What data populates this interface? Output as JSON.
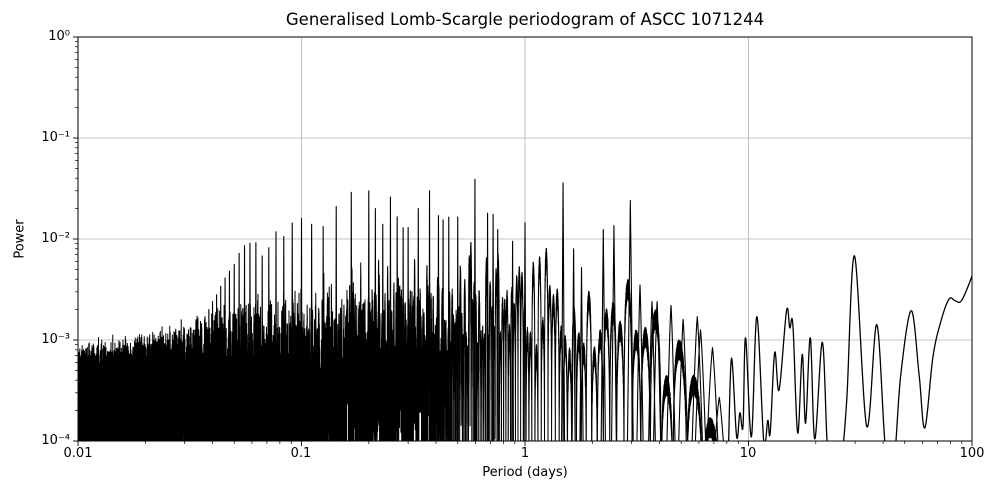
{
  "title": "Generalised Lomb-Scargle periodogram of ASCC 1071244",
  "xlabel": "Period (days)",
  "ylabel": "Power",
  "chart_data": {
    "type": "line",
    "x_scale": "log",
    "y_scale": "log",
    "xlim": [
      0.01,
      100
    ],
    "ylim": [
      0.0001,
      1
    ],
    "grid": true,
    "legend": false,
    "line_color": "#000000",
    "grid_color": "#b0b0b0",
    "spine_color": "#000000",
    "xtick_values": [
      0.01,
      0.1,
      1,
      10,
      100
    ],
    "xtick_labels": [
      "0.01",
      "0.1",
      "1",
      "10",
      "100"
    ],
    "ytick_values": [
      0.0001,
      0.001,
      0.01,
      0.1,
      1
    ],
    "ytick_labels": [
      "10⁻⁴",
      "10⁻³",
      "10⁻²",
      "10⁻¹",
      "10⁰"
    ],
    "major_peaks": [
      [
        0.0333,
        0.0011
      ],
      [
        0.0345,
        0.00125
      ],
      [
        0.0357,
        0.00145
      ],
      [
        0.037,
        0.0017
      ],
      [
        0.0385,
        0.002
      ],
      [
        0.04,
        0.0024
      ],
      [
        0.0417,
        0.0028
      ],
      [
        0.0435,
        0.0034
      ],
      [
        0.0455,
        0.0041
      ],
      [
        0.0476,
        0.0048
      ],
      [
        0.05,
        0.0056
      ],
      [
        0.0526,
        0.0072
      ],
      [
        0.0556,
        0.0086
      ],
      [
        0.0588,
        0.0091
      ],
      [
        0.0625,
        0.0092
      ],
      [
        0.0667,
        0.0068
      ],
      [
        0.0714,
        0.0082
      ],
      [
        0.0769,
        0.0118
      ],
      [
        0.0833,
        0.0106
      ],
      [
        0.0909,
        0.0144
      ],
      [
        0.1,
        0.016
      ],
      [
        0.111,
        0.014
      ],
      [
        0.125,
        0.0133
      ],
      [
        0.143,
        0.021
      ],
      [
        0.167,
        0.029
      ],
      [
        0.2,
        0.03
      ],
      [
        0.214,
        0.02
      ],
      [
        0.231,
        0.014
      ],
      [
        0.25,
        0.026
      ],
      [
        0.268,
        0.0166
      ],
      [
        0.285,
        0.0129
      ],
      [
        0.3,
        0.013
      ],
      [
        0.333,
        0.02
      ],
      [
        0.374,
        0.03
      ],
      [
        0.41,
        0.017
      ],
      [
        0.43,
        0.0155
      ],
      [
        0.456,
        0.0165
      ],
      [
        0.5,
        0.0165
      ],
      [
        0.597,
        0.039
      ],
      [
        0.68,
        0.018
      ],
      [
        0.72,
        0.0175
      ],
      [
        0.755,
        0.0124
      ],
      [
        0.88,
        0.0095
      ],
      [
        1.0,
        0.0145
      ],
      [
        1.48,
        0.036
      ],
      [
        1.65,
        0.008
      ],
      [
        1.79,
        0.0052
      ],
      [
        2.24,
        0.0124
      ],
      [
        2.5,
        0.0136
      ],
      [
        2.96,
        0.024
      ],
      [
        3.27,
        0.0035
      ],
      [
        3.7,
        0.0024
      ],
      [
        3.9,
        0.0024
      ],
      [
        4.5,
        0.0022
      ],
      [
        5.1,
        0.0016
      ],
      [
        5.9,
        0.0017
      ],
      [
        6.1,
        0.00126
      ],
      [
        6.9,
        0.00084
      ],
      [
        7.4,
        0.00027
      ]
    ],
    "noise": {
      "period_range": [
        0.01,
        8.2
      ],
      "t_span_days": 35,
      "floor": 0.0001,
      "canopy_envelope": [
        [
          0.01,
          0.00085
        ],
        [
          0.015,
          0.00095
        ],
        [
          0.02,
          0.00105
        ],
        [
          0.03,
          0.00135
        ],
        [
          0.045,
          0.0019
        ],
        [
          0.06,
          0.0024
        ],
        [
          0.08,
          0.003
        ],
        [
          0.1,
          0.0035
        ],
        [
          0.15,
          0.0045
        ],
        [
          0.22,
          0.0055
        ],
        [
          0.35,
          0.0065
        ],
        [
          0.6,
          0.0075
        ],
        [
          1.0,
          0.008
        ],
        [
          1.6,
          0.0065
        ],
        [
          2.5,
          0.005
        ],
        [
          3.5,
          0.003
        ],
        [
          5.0,
          0.0016
        ],
        [
          6.5,
          0.001
        ],
        [
          8.2,
          0.00045
        ]
      ],
      "depth_profile": [
        [
          0.01,
          0.55
        ],
        [
          0.03,
          0.6
        ],
        [
          0.05,
          0.85
        ],
        [
          0.1,
          1.0
        ],
        [
          0.3,
          1.05
        ],
        [
          1,
          1.05
        ],
        [
          3,
          1.0
        ],
        [
          8.2,
          0.95
        ]
      ]
    },
    "smooth_tail": [
      [
        8.15,
        0.0001
      ],
      [
        8.4,
        0.00066
      ],
      [
        8.85,
        0.00011
      ],
      [
        9.15,
        0.00019
      ],
      [
        9.45,
        0.00014
      ],
      [
        9.7,
        0.00105
      ],
      [
        10.3,
        0.00011
      ],
      [
        10.9,
        0.0017
      ],
      [
        11.7,
        0.0001
      ],
      [
        12.2,
        0.00016
      ],
      [
        12.5,
        0.00012
      ],
      [
        13.1,
        0.00075
      ],
      [
        13.7,
        0.00032
      ],
      [
        14.8,
        0.00195
      ],
      [
        15.3,
        0.00132
      ],
      [
        15.8,
        0.0014
      ],
      [
        16.6,
        0.00012
      ],
      [
        17.4,
        0.00072
      ],
      [
        18.0,
        0.00015
      ],
      [
        18.9,
        0.00105
      ],
      [
        19.8,
        0.000105
      ],
      [
        21.4,
        0.00095
      ],
      [
        22.6,
        8e-05
      ],
      [
        24,
        5.5e-05
      ],
      [
        26,
        7e-05
      ],
      [
        27.5,
        0.00025
      ],
      [
        29.8,
        0.0068
      ],
      [
        33.8,
        0.00014
      ],
      [
        37.5,
        0.00142
      ],
      [
        41,
        8.5e-05
      ],
      [
        44.5,
        5.5e-05
      ],
      [
        48,
        0.00045
      ],
      [
        53.5,
        0.00195
      ],
      [
        58,
        0.00045
      ],
      [
        61.5,
        0.000135
      ],
      [
        67,
        0.0007
      ],
      [
        73,
        0.0016
      ],
      [
        79,
        0.00255
      ],
      [
        84,
        0.00245
      ],
      [
        89,
        0.0024
      ],
      [
        95,
        0.0032
      ],
      [
        100,
        0.0043
      ]
    ]
  }
}
